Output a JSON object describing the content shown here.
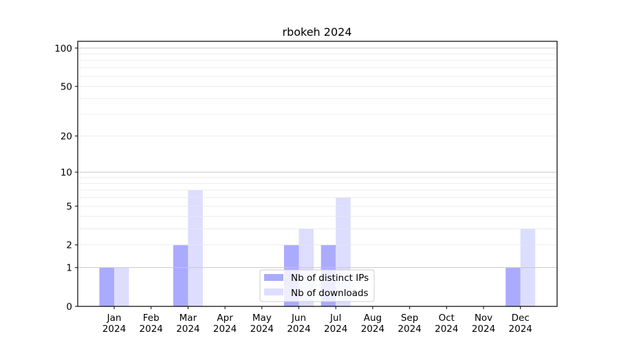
{
  "chart_data": {
    "type": "bar",
    "title": "rbokeh 2024",
    "xlabel": "",
    "ylabel": "",
    "categories": [
      "Jan\n2024",
      "Feb\n2024",
      "Mar\n2024",
      "Apr\n2024",
      "May\n2024",
      "Jun\n2024",
      "Jul\n2024",
      "Aug\n2024",
      "Sep\n2024",
      "Oct\n2024",
      "Nov\n2024",
      "Dec\n2024"
    ],
    "series": [
      {
        "name": "Nb of distinct IPs",
        "color": "#aaaaff",
        "values": [
          1,
          0,
          2,
          0,
          0,
          2,
          2,
          0,
          0,
          0,
          0,
          1
        ]
      },
      {
        "name": "Nb of downloads",
        "color": "#ddddff",
        "values": [
          1,
          0,
          7,
          0,
          0,
          3,
          6,
          0,
          0,
          0,
          0,
          3
        ]
      }
    ],
    "yscale": "log(1+y)",
    "ylim": [
      0,
      113
    ],
    "yticks": [
      0,
      1,
      2,
      5,
      10,
      20,
      50,
      100
    ],
    "grid": true,
    "legend_position": "lower-center"
  }
}
